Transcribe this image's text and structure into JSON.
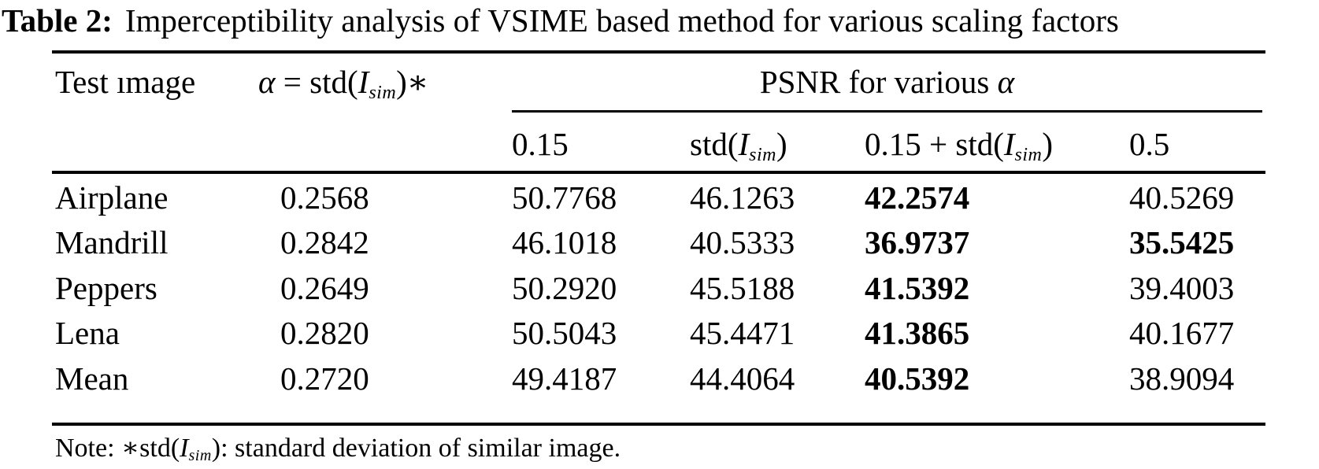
{
  "title": {
    "label": "Table 2:",
    "text": "Imperceptibility analysis of VSIME based method for various scaling factors"
  },
  "table": {
    "headers": {
      "test_image": "Test ımage",
      "alpha": {
        "var1": "α",
        "mid": " = std(",
        "var2": "I",
        "sub": "sim",
        "post": ")∗"
      },
      "psnr_group": {
        "pre": "PSNR for various ",
        "var": "α"
      },
      "sub_015": "0.15",
      "sub_std": {
        "pre": "std(",
        "var": "I",
        "sub": "sim",
        "post": ")"
      },
      "sub_015_std": {
        "pre": "0.15 + std(",
        "var": "I",
        "sub": "sim",
        "post": ")"
      },
      "sub_05": "0.5"
    },
    "rows": [
      {
        "name": "Airplane",
        "alpha": "0.2568",
        "psnr": [
          {
            "value": "50.7768",
            "bold": false
          },
          {
            "value": "46.1263",
            "bold": false
          },
          {
            "value": "42.2574",
            "bold": true
          },
          {
            "value": "40.5269",
            "bold": false
          }
        ]
      },
      {
        "name": "Mandrill",
        "alpha": "0.2842",
        "psnr": [
          {
            "value": "46.1018",
            "bold": false
          },
          {
            "value": "40.5333",
            "bold": false
          },
          {
            "value": "36.9737",
            "bold": true
          },
          {
            "value": "35.5425",
            "bold": true
          }
        ]
      },
      {
        "name": "Peppers",
        "alpha": "0.2649",
        "psnr": [
          {
            "value": "50.2920",
            "bold": false
          },
          {
            "value": "45.5188",
            "bold": false
          },
          {
            "value": "41.5392",
            "bold": true
          },
          {
            "value": "39.4003",
            "bold": false
          }
        ]
      },
      {
        "name": "Lena",
        "alpha": "0.2820",
        "psnr": [
          {
            "value": "50.5043",
            "bold": false
          },
          {
            "value": "45.4471",
            "bold": false
          },
          {
            "value": "41.3865",
            "bold": true
          },
          {
            "value": "40.1677",
            "bold": false
          }
        ]
      },
      {
        "name": "Mean",
        "alpha": "0.2720",
        "psnr": [
          {
            "value": "49.4187",
            "bold": false
          },
          {
            "value": "44.4064",
            "bold": false
          },
          {
            "value": "40.5392",
            "bold": true
          },
          {
            "value": "38.9094",
            "bold": false
          }
        ]
      }
    ],
    "note": {
      "pre": "Note: ∗std(",
      "var": "I",
      "sub": "sim",
      "post": "): standard deviation of similar image."
    }
  }
}
